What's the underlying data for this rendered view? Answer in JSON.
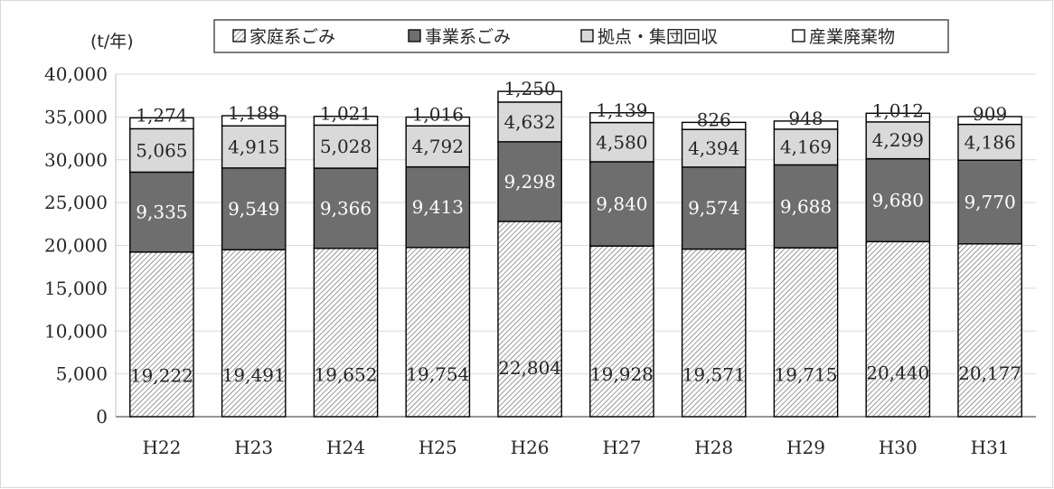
{
  "chart_data": {
    "type": "bar",
    "stacked": true,
    "title": "",
    "xlabel": "",
    "ylabel": "",
    "unit_label": "(t/年)",
    "ylim": [
      0,
      40000
    ],
    "yticks": [
      0,
      5000,
      10000,
      15000,
      20000,
      25000,
      30000,
      35000,
      40000
    ],
    "ytick_labels": [
      "0",
      "5,000",
      "10,000",
      "15,000",
      "20,000",
      "25,000",
      "30,000",
      "35,000",
      "40,000"
    ],
    "grid": true,
    "legend_position": "top",
    "categories": [
      "H22",
      "H23",
      "H24",
      "H25",
      "H26",
      "H27",
      "H28",
      "H29",
      "H30",
      "H31"
    ],
    "series": [
      {
        "name": "家庭系ごみ",
        "values": [
          19222,
          19491,
          19652,
          19754,
          22804,
          19928,
          19571,
          19715,
          20440,
          20177
        ],
        "labels": [
          "19,222",
          "19,491",
          "19,652",
          "19,754",
          "22,804",
          "19,928",
          "19,571",
          "19,715",
          "20,440",
          "20,177"
        ],
        "fill": "hatch",
        "label_color": "#262626"
      },
      {
        "name": "事業系ごみ",
        "values": [
          9335,
          9549,
          9366,
          9413,
          9298,
          9840,
          9574,
          9688,
          9680,
          9770
        ],
        "labels": [
          "9,335",
          "9,549",
          "9,366",
          "9,413",
          "9,298",
          "9,840",
          "9,574",
          "9,688",
          "9,680",
          "9,770"
        ],
        "fill": "#6e6e6e",
        "label_color": "#ffffff"
      },
      {
        "name": "拠点・集団回収",
        "values": [
          5065,
          4915,
          5028,
          4792,
          4632,
          4580,
          4394,
          4169,
          4299,
          4186
        ],
        "labels": [
          "5,065",
          "4,915",
          "5,028",
          "4,792",
          "4,632",
          "4,580",
          "4,394",
          "4,169",
          "4,299",
          "4,186"
        ],
        "fill": "#d9d9d9",
        "label_color": "#262626"
      },
      {
        "name": "産業廃棄物",
        "values": [
          1274,
          1188,
          1021,
          1016,
          1250,
          1139,
          826,
          948,
          1012,
          909
        ],
        "labels": [
          "1,274",
          "1,188",
          "1,021",
          "1,016",
          "1,250",
          "1,139",
          "826",
          "948",
          "1,012",
          "909"
        ],
        "fill": "#ffffff",
        "label_color": "#262626"
      }
    ]
  }
}
